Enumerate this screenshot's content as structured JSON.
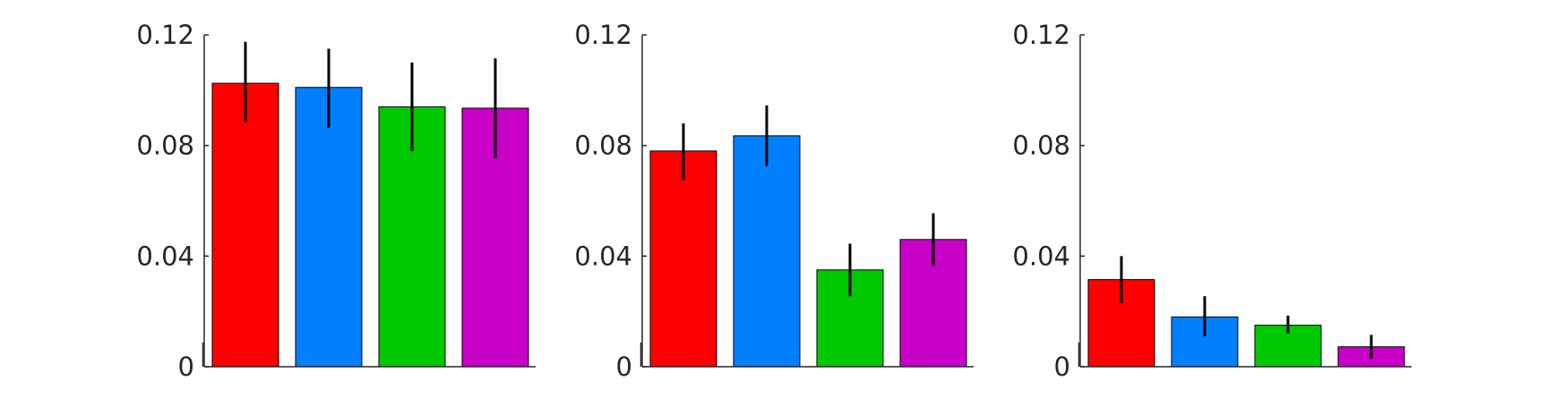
{
  "chart_data": [
    {
      "type": "bar",
      "title": "",
      "xlabel": "",
      "ylabel": "",
      "ylim": [
        0,
        0.12
      ],
      "yticks": [
        "0",
        "0.04",
        "0.08",
        "0.12"
      ],
      "values": [
        0.1025,
        0.101,
        0.094,
        0.0935
      ],
      "error": [
        [
          0.0885,
          0.1175
        ],
        [
          0.0865,
          0.115
        ],
        [
          0.078,
          0.11
        ],
        [
          0.0755,
          0.1115
        ]
      ]
    },
    {
      "type": "bar",
      "title": "",
      "xlabel": "",
      "ylabel": "",
      "ylim": [
        0,
        0.12
      ],
      "yticks": [
        "0",
        "0.04",
        "0.08",
        "0.12"
      ],
      "values": [
        0.078,
        0.0835,
        0.035,
        0.046
      ],
      "error": [
        [
          0.0675,
          0.088
        ],
        [
          0.0725,
          0.0945
        ],
        [
          0.0255,
          0.0445
        ],
        [
          0.0365,
          0.0555
        ]
      ]
    },
    {
      "type": "bar",
      "title": "",
      "xlabel": "",
      "ylabel": "",
      "ylim": [
        0,
        0.12
      ],
      "yticks": [
        "0",
        "0.04",
        "0.08",
        "0.12"
      ],
      "values": [
        0.0315,
        0.018,
        0.015,
        0.0072
      ],
      "error": [
        [
          0.023,
          0.04
        ],
        [
          0.011,
          0.0255
        ],
        [
          0.012,
          0.0185
        ],
        [
          0.003,
          0.0115
        ]
      ]
    }
  ],
  "colors": [
    "#ff0000",
    "#0080ff",
    "#00c800",
    "#c800c8"
  ],
  "errorbar_color": "#000000",
  "axis_color": "#262626"
}
